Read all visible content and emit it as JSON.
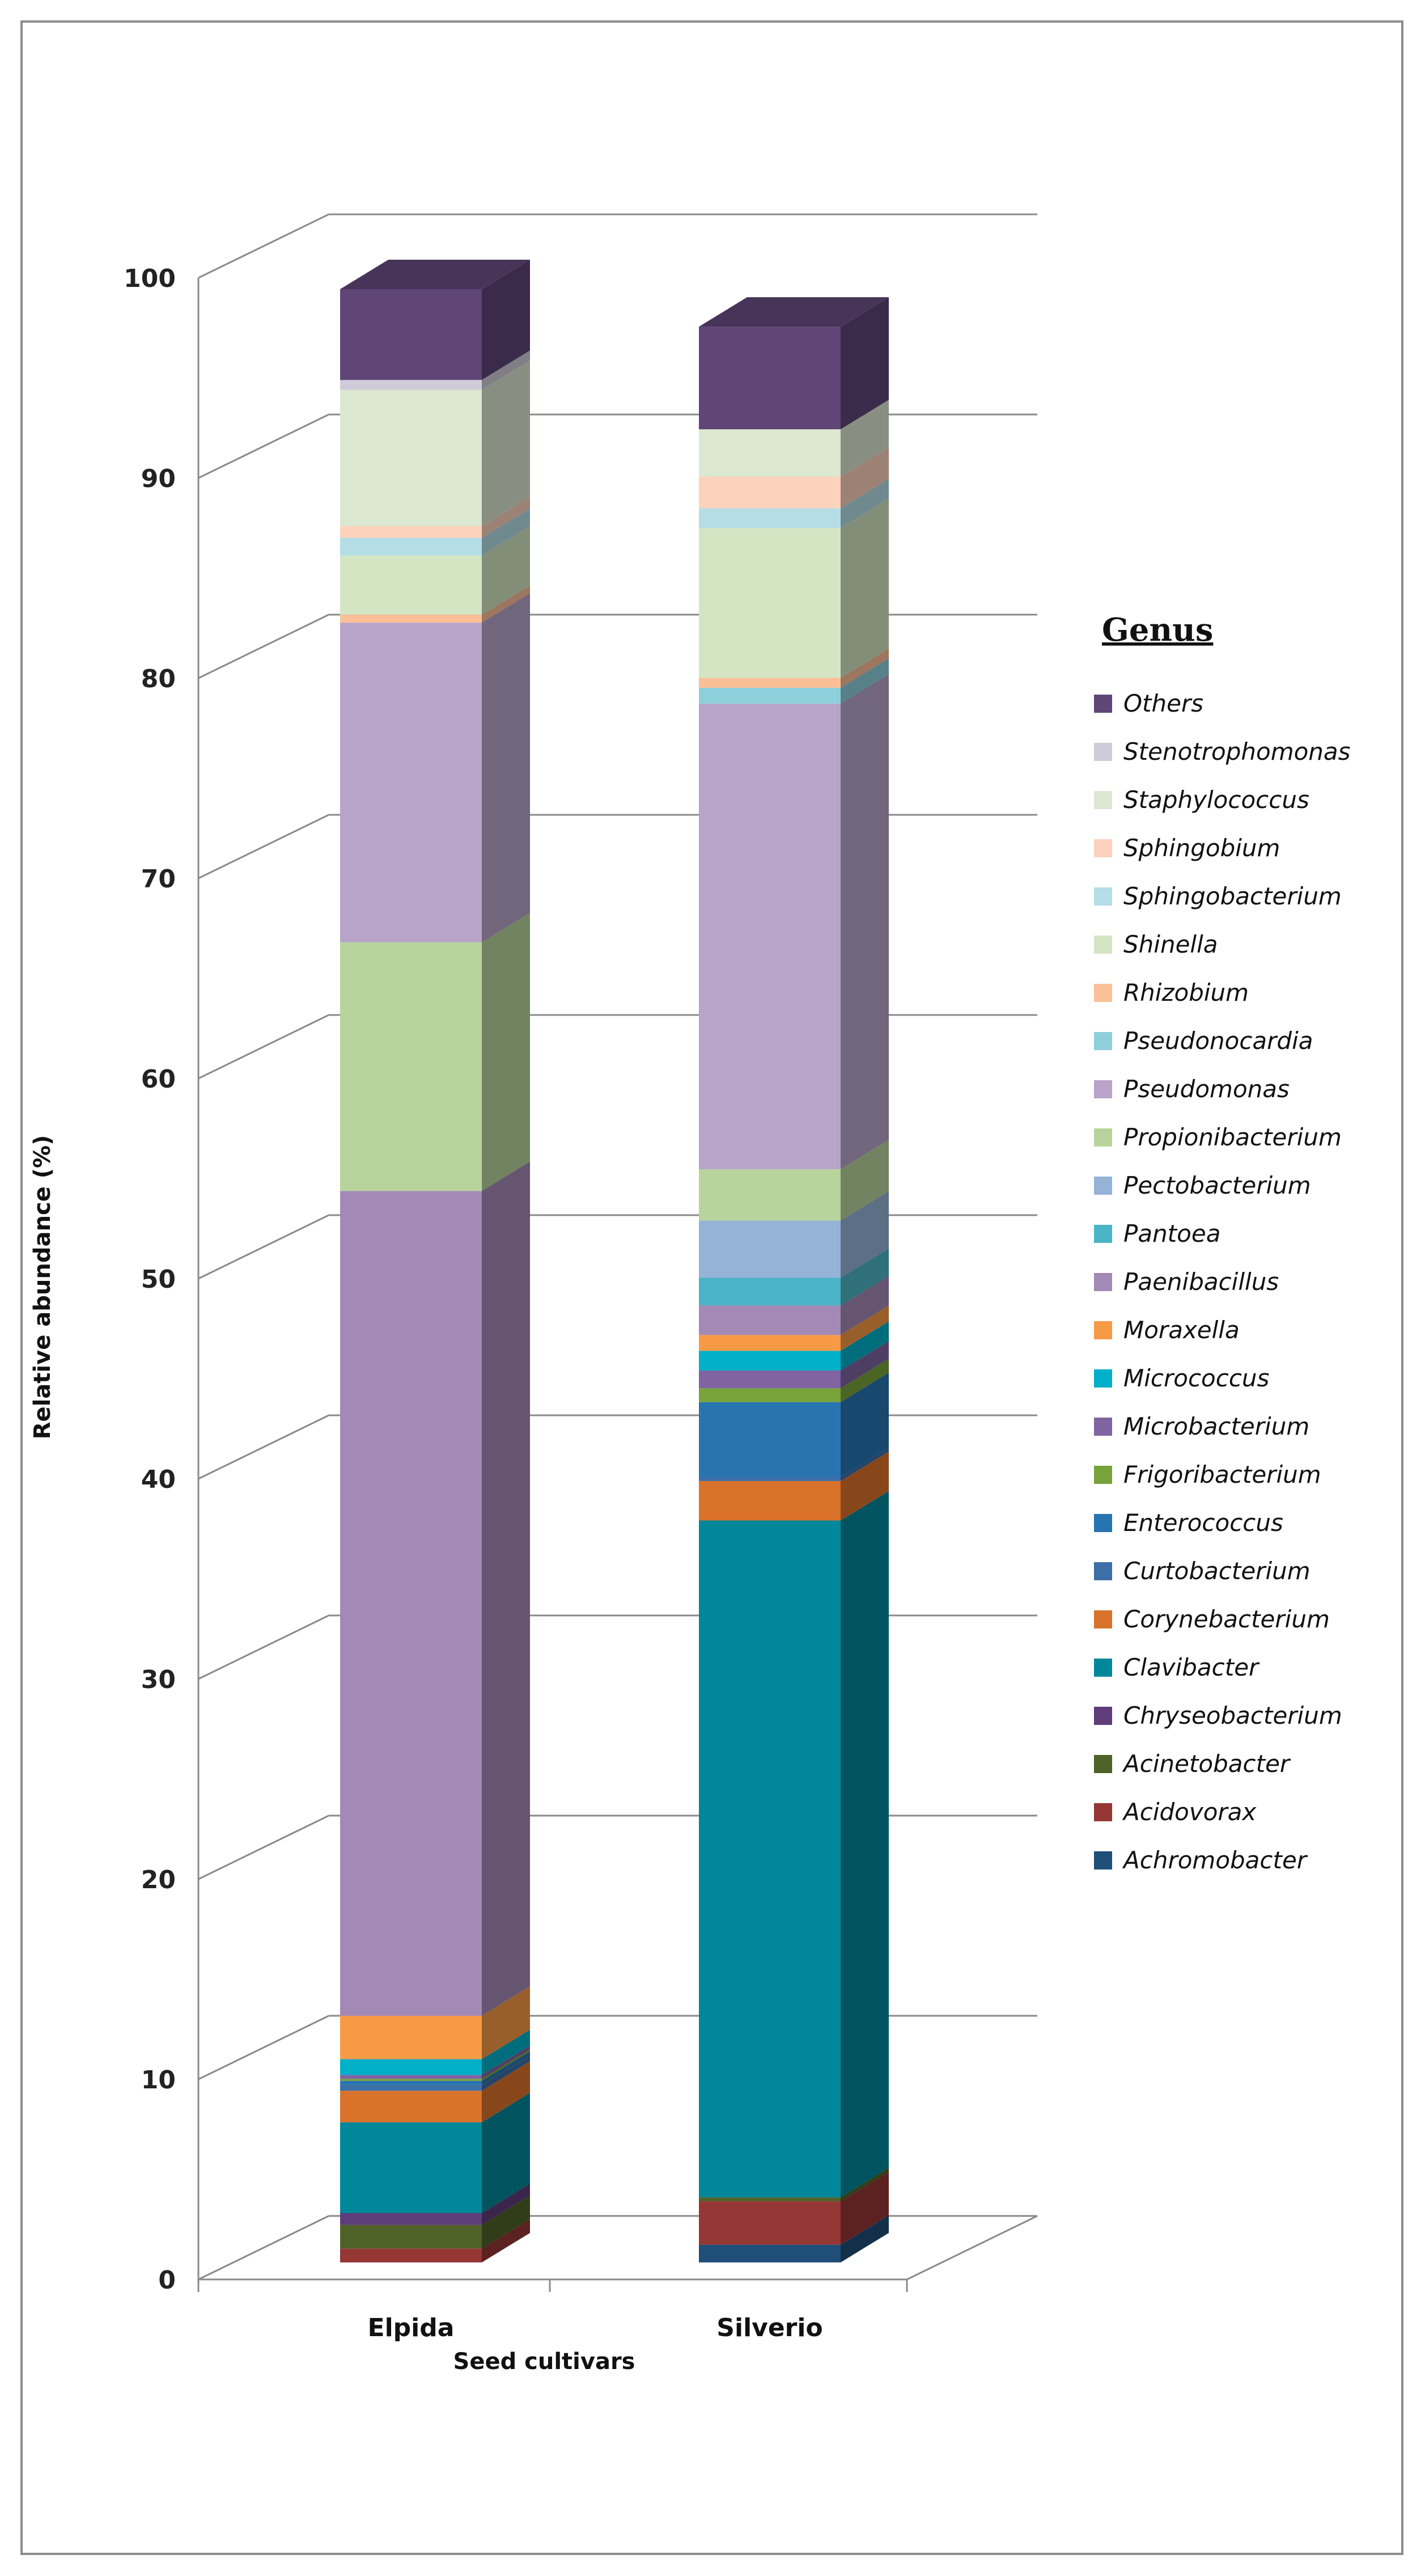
{
  "chart_data": {
    "type": "stacked-bar-3d",
    "title": "",
    "xlabel": "Seed cultivars",
    "ylabel": "Relative abundance (%)",
    "ylim": [
      0,
      100
    ],
    "yticks": [
      0,
      10,
      20,
      30,
      40,
      50,
      60,
      70,
      80,
      90,
      100
    ],
    "grid": true,
    "legend_title": "Genus",
    "legend_position": "right",
    "categories": [
      "Elpida",
      "Silverio"
    ],
    "series": [
      {
        "name": "Achromobacter",
        "color": "#1f4e79",
        "values": [
          0.0,
          0.9
        ]
      },
      {
        "name": "Acidovorax",
        "color": "#953735",
        "values": [
          0.7,
          2.2
        ]
      },
      {
        "name": "Acinetobacter",
        "color": "#4f6228",
        "values": [
          1.2,
          0.2
        ]
      },
      {
        "name": "Chryseobacterium",
        "color": "#5f3c7a",
        "values": [
          0.6,
          0.0
        ]
      },
      {
        "name": "Clavibacter",
        "color": "#00889a",
        "values": [
          4.6,
          34.3
        ]
      },
      {
        "name": "Corynebacterium",
        "color": "#d9722b",
        "values": [
          1.6,
          2.0
        ]
      },
      {
        "name": "Curtobacterium",
        "color": "#3c6ea8",
        "values": [
          0.3,
          0.2
        ]
      },
      {
        "name": "Enterococcus",
        "color": "#2774b0",
        "values": [
          0.2,
          3.8
        ]
      },
      {
        "name": "Frigoribacterium",
        "color": "#77a33a",
        "values": [
          0.1,
          0.7
        ]
      },
      {
        "name": "Microbacterium",
        "color": "#8064a2",
        "values": [
          0.2,
          0.9
        ]
      },
      {
        "name": "Micrococcus",
        "color": "#00b0c8",
        "values": [
          0.8,
          1.0
        ]
      },
      {
        "name": "Moraxella",
        "color": "#f79a46",
        "values": [
          2.2,
          0.8
        ]
      },
      {
        "name": "Paenibacillus",
        "color": "#a389b5",
        "values": [
          41.8,
          1.5
        ]
      },
      {
        "name": "Pantoea",
        "color": "#4bb4c6",
        "values": [
          0.0,
          1.4
        ]
      },
      {
        "name": "Pectobacterium",
        "color": "#95b3d7",
        "values": [
          0.0,
          2.9
        ]
      },
      {
        "name": "Propionibacterium",
        "color": "#b8d49c",
        "values": [
          12.6,
          2.6
        ]
      },
      {
        "name": "Pseudomonas",
        "color": "#b7a4c8",
        "values": [
          16.2,
          23.6
        ]
      },
      {
        "name": "Pseudonocardia",
        "color": "#8ecfdc",
        "values": [
          0.0,
          0.8
        ]
      },
      {
        "name": "Rhizobium",
        "color": "#fbbf97",
        "values": [
          0.4,
          0.5
        ]
      },
      {
        "name": "Shinella",
        "color": "#d4e5c3",
        "values": [
          3.0,
          7.6
        ]
      },
      {
        "name": "Sphingobacterium",
        "color": "#b5dde6",
        "values": [
          0.9,
          1.0
        ]
      },
      {
        "name": "Sphingobium",
        "color": "#fcd2bd",
        "values": [
          0.6,
          1.6
        ]
      },
      {
        "name": "Staphylococcus",
        "color": "#dbe7d1",
        "values": [
          6.9,
          2.4
        ]
      },
      {
        "name": "Stenotrophomonas",
        "color": "#d0cbd8",
        "values": [
          0.5,
          0.0
        ]
      },
      {
        "name": "Others",
        "color": "#5f4677",
        "values": [
          4.6,
          5.2
        ]
      }
    ]
  }
}
